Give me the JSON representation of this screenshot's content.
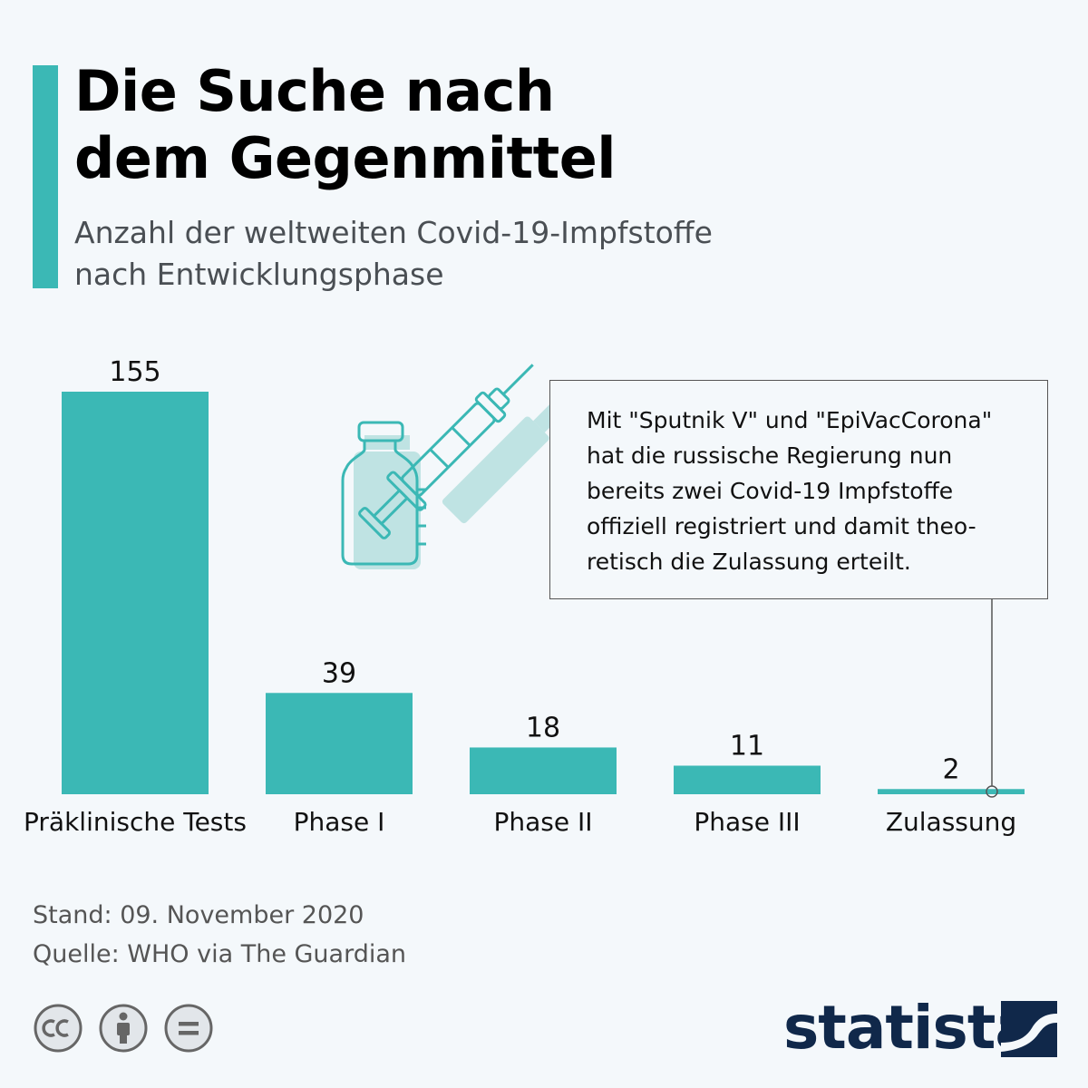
{
  "header": {
    "title_lines": [
      "Die Suche nach",
      "dem Gegenmittel"
    ],
    "subtitle_lines": [
      "Anzahl der weltweiten Covid-19-Impfstoffe",
      "nach Entwicklungsphase"
    ]
  },
  "colors": {
    "accent": "#3bb8b5",
    "brand": "#10284a",
    "text_muted": "#555555"
  },
  "chart_data": {
    "type": "bar",
    "categories": [
      "Präklinische Tests",
      "Phase I",
      "Phase II",
      "Phase III",
      "Zulassung"
    ],
    "values": [
      155,
      39,
      18,
      11,
      2
    ],
    "ylim": [
      0,
      155
    ],
    "grid": false,
    "legend": "none",
    "bar_color": "#3bb8b5"
  },
  "callout": {
    "lines": [
      "Mit \"Sputnik V\" und \"EpiVacCorona\"",
      "hat die russische Regierung nun",
      "bereits zwei Covid-19 Impfstoffe",
      "offiziell registriert und damit theo-",
      "retisch die Zulassung erteilt."
    ],
    "target_category": "Zulassung"
  },
  "footer": {
    "date": "Stand: 09. November 2020",
    "source": "Quelle: WHO via The Guardian"
  },
  "license_icons": [
    "cc-icon",
    "attribution-icon",
    "no-derivatives-icon"
  ],
  "brand": {
    "name": "statista",
    "icon": "statista-logo-icon"
  }
}
